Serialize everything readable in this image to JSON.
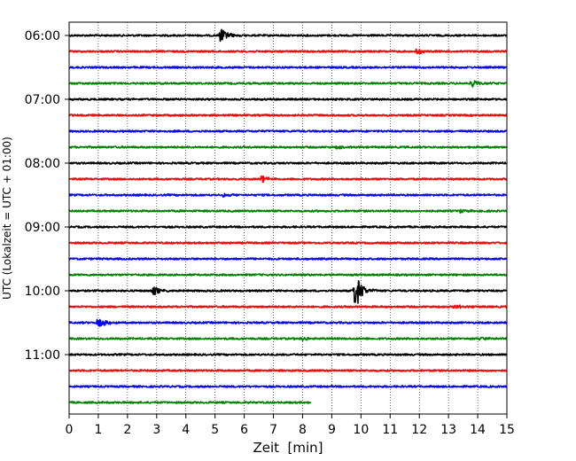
{
  "chart_data": {
    "type": "line",
    "title": "",
    "xlabel": "Zeit  [min]",
    "ylabel": "UTC (Lokalzeit = UTC + 01:00)",
    "xlim": [
      0,
      15
    ],
    "x_ticks": [
      0,
      1,
      2,
      3,
      4,
      5,
      6,
      7,
      8,
      9,
      10,
      11,
      12,
      13,
      14,
      15
    ],
    "x_tick_labels": [
      "0",
      "1",
      "2",
      "3",
      "4",
      "5",
      "6",
      "7",
      "8",
      "9",
      "10",
      "11",
      "12",
      "13",
      "14",
      "15"
    ],
    "y_tick_labels": [
      "06:00",
      "07:00",
      "08:00",
      "09:00",
      "10:00",
      "11:00"
    ],
    "grid": "vertical dotted at each minute",
    "legend": "none",
    "series_colors": [
      "#000000",
      "#ff0000",
      "#0000ff",
      "#008000"
    ],
    "traces": [
      {
        "time": "06:00",
        "color": "#000000",
        "end_min": 15,
        "events": [
          {
            "t": 5.2,
            "amp": 9
          }
        ]
      },
      {
        "time": "06:15",
        "color": "#ff0000",
        "end_min": 15,
        "events": [
          {
            "t": 11.9,
            "amp": 4
          }
        ]
      },
      {
        "time": "06:30",
        "color": "#0000ff",
        "end_min": 15,
        "events": []
      },
      {
        "time": "06:45",
        "color": "#008000",
        "end_min": 15,
        "events": [
          {
            "t": 13.8,
            "amp": 4
          }
        ]
      },
      {
        "time": "07:00",
        "color": "#000000",
        "end_min": 15,
        "events": []
      },
      {
        "time": "07:15",
        "color": "#ff0000",
        "end_min": 15,
        "events": []
      },
      {
        "time": "07:30",
        "color": "#0000ff",
        "end_min": 15,
        "events": []
      },
      {
        "time": "07:45",
        "color": "#008000",
        "end_min": 15,
        "events": [
          {
            "t": 9.2,
            "amp": 2
          }
        ]
      },
      {
        "time": "08:00",
        "color": "#000000",
        "end_min": 15,
        "events": []
      },
      {
        "time": "08:15",
        "color": "#ff0000",
        "end_min": 15,
        "events": [
          {
            "t": 6.6,
            "amp": 5
          }
        ]
      },
      {
        "time": "08:30",
        "color": "#0000ff",
        "end_min": 15,
        "events": [
          {
            "t": 5.3,
            "amp": 2
          }
        ]
      },
      {
        "time": "08:45",
        "color": "#008000",
        "end_min": 15,
        "events": [
          {
            "t": 13.4,
            "amp": 2
          }
        ]
      },
      {
        "time": "09:00",
        "color": "#000000",
        "end_min": 15,
        "events": []
      },
      {
        "time": "09:15",
        "color": "#ff0000",
        "end_min": 15,
        "events": []
      },
      {
        "time": "09:30",
        "color": "#0000ff",
        "end_min": 15,
        "events": []
      },
      {
        "time": "09:45",
        "color": "#008000",
        "end_min": 15,
        "events": []
      },
      {
        "time": "10:00",
        "color": "#000000",
        "end_min": 15,
        "events": [
          {
            "t": 2.9,
            "amp": 5
          },
          {
            "t": 9.8,
            "amp": 22
          }
        ]
      },
      {
        "time": "10:15",
        "color": "#ff0000",
        "end_min": 15,
        "events": [
          {
            "t": 13.2,
            "amp": 3
          }
        ]
      },
      {
        "time": "10:30",
        "color": "#0000ff",
        "end_min": 15,
        "events": [
          {
            "t": 1.0,
            "amp": 9
          }
        ]
      },
      {
        "time": "10:45",
        "color": "#008000",
        "end_min": 15,
        "events": [
          {
            "t": 8.0,
            "amp": 2
          },
          {
            "t": 14.1,
            "amp": 2
          }
        ]
      },
      {
        "time": "11:00",
        "color": "#000000",
        "end_min": 15,
        "events": []
      },
      {
        "time": "11:15",
        "color": "#ff0000",
        "end_min": 15,
        "events": []
      },
      {
        "time": "11:30",
        "color": "#0000ff",
        "end_min": 15,
        "events": []
      },
      {
        "time": "11:45",
        "color": "#008000",
        "end_min": 8.3,
        "events": []
      }
    ]
  }
}
